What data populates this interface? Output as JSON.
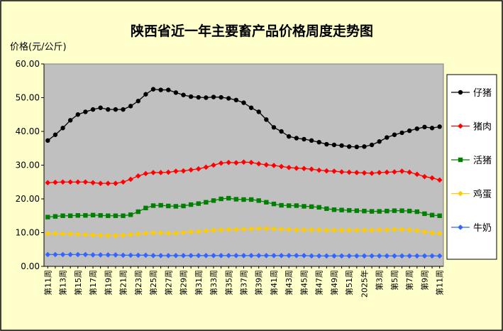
{
  "chart_data": {
    "type": "line",
    "title": "陕西省近一年主要畜产品价格周度走势图",
    "y_label": "价格(元/公斤)",
    "categories": [
      "第11周",
      null,
      "第13周",
      null,
      "第15周",
      null,
      "第17周",
      null,
      "第19周",
      null,
      "第21周",
      null,
      "第23周",
      null,
      "第25周",
      null,
      "第27周",
      null,
      "第29周",
      null,
      "第31周",
      null,
      "第33周",
      null,
      "第35周",
      null,
      "第37周",
      null,
      "第39周",
      null,
      "第41周",
      null,
      "第43周",
      null,
      "第45周",
      null,
      "第47周",
      null,
      "第49周",
      null,
      "第51周",
      null,
      "2025年",
      null,
      "第3周",
      null,
      "第5周",
      null,
      "第7周",
      null,
      "第9周",
      null,
      "第11周"
    ],
    "series": [
      {
        "name": "仔猪",
        "color": "#000000",
        "marker": "circle",
        "values": [
          37.3,
          39,
          41,
          43.3,
          45,
          45.8,
          46.5,
          47,
          46.5,
          46.5,
          46.5,
          47.5,
          49,
          51,
          52.5,
          52.3,
          52.3,
          51.5,
          50.8,
          50.3,
          50.1,
          50,
          50.2,
          50.1,
          49.8,
          49.3,
          48.5,
          47,
          45.8,
          43.5,
          41.2,
          40,
          38.5,
          38,
          37.7,
          37.3,
          36.8,
          36.2,
          36,
          35.8,
          35.5,
          35.4,
          35.5,
          36,
          37,
          38.2,
          39,
          39.6,
          40.2,
          40.8,
          41.3,
          41,
          41.4
        ]
      },
      {
        "name": "猪肉",
        "color": "#ff0000",
        "marker": "diamond",
        "values": [
          24.8,
          24.9,
          25,
          25,
          25,
          25,
          24.8,
          24.6,
          24.6,
          24.6,
          25,
          25.8,
          26.8,
          27.5,
          27.8,
          27.8,
          27.9,
          28.2,
          28.3,
          28.6,
          28.9,
          29.4,
          30,
          30.6,
          30.8,
          30.7,
          30.9,
          30.8,
          30.4,
          30.1,
          29.9,
          29.6,
          29.3,
          29.1,
          29,
          28.8,
          28.5,
          28.3,
          28.2,
          28,
          27.9,
          27.8,
          27.7,
          27.6,
          27.8,
          27.9,
          28,
          28.2,
          27.9,
          27.3,
          26.6,
          26.2,
          25.6
        ]
      },
      {
        "name": "活猪",
        "color": "#008000",
        "marker": "square",
        "values": [
          14.6,
          14.8,
          15,
          15,
          15.1,
          15.1,
          15.2,
          15.1,
          15,
          15,
          15,
          15.3,
          16.2,
          17.3,
          18,
          18.1,
          17.9,
          17.8,
          17.9,
          18.3,
          18.6,
          19,
          19.5,
          20,
          20.2,
          19.9,
          19.8,
          19.8,
          19.5,
          19,
          18.5,
          18.1,
          18,
          18,
          17.8,
          17.7,
          17.5,
          17.1,
          16.8,
          16.7,
          16.6,
          16.5,
          16.4,
          16.3,
          16.3,
          16.4,
          16.5,
          16.5,
          16.4,
          16.2,
          15.6,
          15.2,
          15
        ]
      },
      {
        "name": "鸡蛋",
        "color": "#ffcc00",
        "marker": "diamond",
        "values": [
          9.7,
          9.7,
          9.6,
          9.6,
          9.5,
          9.4,
          9.3,
          9.2,
          9.1,
          9.1,
          9.2,
          9.4,
          9.6,
          9.8,
          9.9,
          9.9,
          9.8,
          9.8,
          10,
          10.2,
          10.3,
          10.5,
          10.7,
          10.8,
          10.9,
          10.9,
          11,
          11.1,
          11.2,
          11.2,
          11.1,
          11,
          10.9,
          10.8,
          10.8,
          10.8,
          10.8,
          10.7,
          10.7,
          10.7,
          10.7,
          10.7,
          10.7,
          10.7,
          10.8,
          10.8,
          10.9,
          10.9,
          10.8,
          10.6,
          10.2,
          9.9,
          9.7
        ]
      },
      {
        "name": "牛奶",
        "color": "#3366ff",
        "marker": "diamond",
        "values": [
          3.5,
          3.5,
          3.5,
          3.5,
          3.5,
          3.5,
          3.4,
          3.4,
          3.4,
          3.4,
          3.3,
          3.3,
          3.3,
          3.3,
          3.2,
          3.2,
          3.2,
          3.2,
          3.2,
          3.2,
          3.2,
          3.2,
          3.2,
          3.2,
          3.2,
          3.2,
          3.2,
          3.2,
          3.2,
          3.2,
          3.2,
          3.2,
          3.2,
          3.2,
          3.2,
          3.1,
          3.1,
          3.1,
          3.1,
          3.1,
          3.1,
          3.1,
          3.1,
          3.1,
          3.1,
          3.1,
          3.1,
          3.1,
          3.1,
          3.1,
          3.1,
          3.1,
          3.1
        ]
      }
    ],
    "ylim": [
      0,
      60
    ],
    "yticks": [
      {
        "value": 0,
        "label": "0.00"
      },
      {
        "value": 10,
        "label": "10.00"
      },
      {
        "value": 20,
        "label": "20.00"
      },
      {
        "value": 30,
        "label": "30.00"
      },
      {
        "value": 40,
        "label": "40.00"
      },
      {
        "value": 50,
        "label": "50.00"
      },
      {
        "value": 60,
        "label": "60.00"
      }
    ],
    "grid": false,
    "legend": "right"
  }
}
